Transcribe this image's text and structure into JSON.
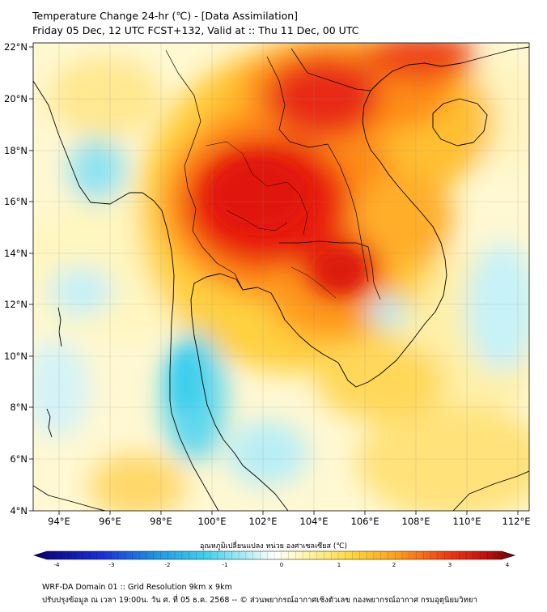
{
  "title": {
    "line1": "Temperature Change 24-hr (℃) - [Data Assimilation]",
    "line2": "Friday 05 Dec, 12 UTC FCST+132, Valid at :: Thu 11 Dec, 00 UTC"
  },
  "map": {
    "lon_range": [
      93,
      112.5
    ],
    "lat_range": [
      4,
      22.2
    ],
    "lat_labels": [
      "22°N",
      "20°N",
      "18°N",
      "16°N",
      "14°N",
      "12°N",
      "10°N",
      "8°N",
      "6°N",
      "4°N"
    ],
    "lon_labels": [
      "94°E",
      "96°E",
      "98°E",
      "100°E",
      "102°E",
      "104°E",
      "106°E",
      "108°E",
      "110°E",
      "112°E"
    ],
    "grid": true,
    "colors": {
      "warm_strong": "#e81e10",
      "warm_mid": "#ff8c14",
      "warm_light": "#ffd23c",
      "neutral": "#fffbe0",
      "cool_light": "#bff0f7",
      "cool_mid": "#5fd7ee",
      "coast": "#000000"
    }
  },
  "colorbar": {
    "title": "อุณหภูมิเปลี่ยนแปลง หน่วย องศาเซลเซียส (℃)",
    "min": -4,
    "max": 4,
    "tick_labels": [
      "-4",
      "-3",
      "-2",
      "-1",
      "0",
      "1",
      "2",
      "3",
      "4"
    ]
  },
  "footer": {
    "line1": "WRF-DA Domain 01 :: Grid Resolution 9km x 9km",
    "line2": "ปรับปรุงข้อมูล ณ เวลา 19:00น. วัน ศ. ที่ 05 ธ.ค. 2568 -- © ส่วนพยากรณ์อากาศเชิงตัวเลข กองพยากรณ์อากาศ กรมอุตุนิยมวิทยา"
  }
}
